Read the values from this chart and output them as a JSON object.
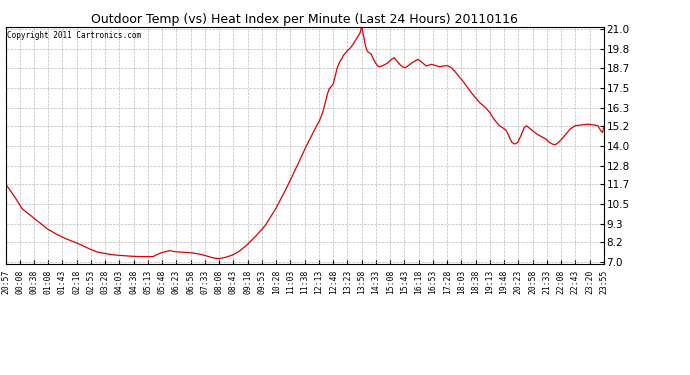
{
  "title": "Outdoor Temp (vs) Heat Index per Minute (Last 24 Hours) 20110116",
  "copyright_text": "Copyright 2011 Cartronics.com",
  "line_color": "#dd0000",
  "background_color": "#ffffff",
  "plot_bg_color": "#ffffff",
  "grid_color": "#bbbbbb",
  "yticks": [
    7.0,
    8.2,
    9.3,
    10.5,
    11.7,
    12.8,
    14.0,
    15.2,
    16.3,
    17.5,
    18.7,
    19.8,
    21.0
  ],
  "ylim": [
    6.85,
    21.15
  ],
  "xtick_labels": [
    "20:57",
    "00:08",
    "00:38",
    "01:08",
    "01:43",
    "02:18",
    "02:53",
    "03:28",
    "04:03",
    "04:38",
    "05:13",
    "05:48",
    "06:23",
    "06:58",
    "07:33",
    "08:08",
    "08:43",
    "09:18",
    "09:53",
    "10:28",
    "11:03",
    "11:38",
    "12:13",
    "12:48",
    "13:23",
    "13:58",
    "14:33",
    "15:08",
    "15:43",
    "16:18",
    "16:53",
    "17:28",
    "18:03",
    "18:38",
    "19:13",
    "19:48",
    "20:23",
    "20:58",
    "21:33",
    "22:08",
    "22:43",
    "23:20",
    "23:55"
  ],
  "num_points": 1440,
  "key_points": {
    "0": 11.7,
    "20": 11.0,
    "40": 10.2,
    "60": 9.8,
    "80": 9.4,
    "100": 9.0,
    "120": 8.7,
    "140": 8.45,
    "160": 8.25,
    "180": 8.05,
    "200": 7.8,
    "220": 7.6,
    "240": 7.5,
    "260": 7.42,
    "280": 7.38,
    "295": 7.35,
    "310": 7.33,
    "325": 7.32,
    "340": 7.32,
    "355": 7.32,
    "365": 7.45,
    "375": 7.55,
    "385": 7.62,
    "395": 7.68,
    "405": 7.62,
    "415": 7.6,
    "425": 7.58,
    "435": 7.57,
    "445": 7.55,
    "455": 7.52,
    "465": 7.48,
    "475": 7.42,
    "485": 7.35,
    "492": 7.3,
    "498": 7.25,
    "505": 7.22,
    "512": 7.2,
    "520": 7.22,
    "530": 7.28,
    "545": 7.4,
    "560": 7.6,
    "580": 8.0,
    "600": 8.5,
    "625": 9.2,
    "650": 10.2,
    "675": 11.4,
    "700": 12.7,
    "720": 13.8,
    "740": 14.8,
    "755": 15.5,
    "763": 16.0,
    "768": 16.5,
    "773": 17.0,
    "778": 17.4,
    "783": 17.55,
    "788": 17.7,
    "793": 18.2,
    "798": 18.7,
    "803": 19.0,
    "808": 19.2,
    "813": 19.45,
    "818": 19.6,
    "823": 19.75,
    "828": 19.85,
    "833": 20.0,
    "838": 20.2,
    "843": 20.4,
    "848": 20.6,
    "853": 20.8,
    "856": 21.1,
    "858": 21.05,
    "862": 20.5,
    "866": 20.0,
    "870": 19.7,
    "875": 19.6,
    "880": 19.5,
    "885": 19.2,
    "890": 19.0,
    "895": 18.8,
    "900": 18.75,
    "910": 18.85,
    "920": 19.0,
    "928": 19.2,
    "935": 19.3,
    "942": 19.1,
    "948": 18.9,
    "955": 18.75,
    "962": 18.7,
    "970": 18.85,
    "978": 19.0,
    "985": 19.1,
    "992": 19.2,
    "998": 19.1,
    "1005": 18.95,
    "1012": 18.8,
    "1018": 18.85,
    "1025": 18.9,
    "1032": 18.85,
    "1038": 18.8,
    "1045": 18.75,
    "1052": 18.8,
    "1058": 18.82,
    "1065": 18.8,
    "1072": 18.7,
    "1080": 18.5,
    "1090": 18.2,
    "1100": 17.9,
    "1110": 17.55,
    "1120": 17.2,
    "1130": 16.9,
    "1140": 16.6,
    "1150": 16.4,
    "1158": 16.2,
    "1165": 16.0,
    "1172": 15.7,
    "1178": 15.5,
    "1183": 15.35,
    "1188": 15.2,
    "1195": 15.1,
    "1205": 14.9,
    "1212": 14.5,
    "1218": 14.2,
    "1225": 14.1,
    "1232": 14.2,
    "1238": 14.5,
    "1243": 14.8,
    "1248": 15.1,
    "1253": 15.2,
    "1258": 15.1,
    "1263": 15.0,
    "1268": 14.9,
    "1273": 14.8,
    "1278": 14.7,
    "1285": 14.6,
    "1292": 14.5,
    "1300": 14.4,
    "1308": 14.2,
    "1315": 14.1,
    "1322": 14.05,
    "1330": 14.2,
    "1338": 14.4,
    "1348": 14.7,
    "1358": 15.0,
    "1370": 15.2,
    "1385": 15.25,
    "1400": 15.3,
    "1415": 15.25,
    "1425": 15.2,
    "1432": 14.9,
    "1436": 14.8,
    "1439": 15.1
  }
}
